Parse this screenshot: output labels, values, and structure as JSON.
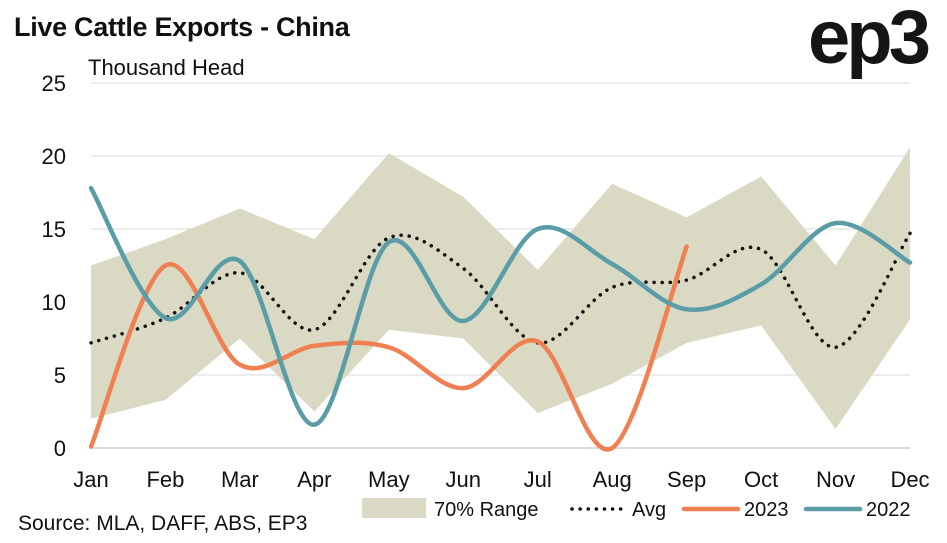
{
  "header": {
    "title": "Live Cattle Exports - China",
    "subtitle": "Thousand Head",
    "logo": "ep3"
  },
  "footer": {
    "source": "Source: MLA, DAFF, ABS, EP3"
  },
  "colors": {
    "range": "#d9d9c4",
    "avg": "#111111",
    "series_2023": "#f07f52",
    "series_2022": "#5a9da6",
    "grid": "#e6e6e6"
  },
  "chart_data": {
    "type": "line",
    "title": "Live Cattle Exports - China",
    "ylabel": "Thousand Head",
    "xlabel": "",
    "ylim": [
      0,
      25
    ],
    "yticks": [
      0,
      5,
      10,
      15,
      20,
      25
    ],
    "grid": true,
    "legend_position": "bottom",
    "categories": [
      "Jan",
      "Feb",
      "Mar",
      "Apr",
      "May",
      "Jun",
      "Jul",
      "Aug",
      "Sep",
      "Oct",
      "Nov",
      "Dec"
    ],
    "range": {
      "name": "70% Range",
      "low": [
        2.0,
        3.3,
        7.5,
        2.5,
        8.1,
        7.5,
        2.4,
        4.4,
        7.2,
        8.4,
        1.3,
        8.8
      ],
      "high": [
        12.5,
        14.3,
        16.4,
        14.3,
        20.2,
        17.2,
        12.2,
        18.1,
        15.8,
        18.6,
        12.5,
        20.6
      ]
    },
    "series": [
      {
        "name": "Avg",
        "style": "dotted",
        "values": [
          7.2,
          8.9,
          12.0,
          8.1,
          14.4,
          12.3,
          7.2,
          11.0,
          11.5,
          13.6,
          6.9,
          14.7
        ]
      },
      {
        "name": "2023",
        "style": "solid",
        "values": [
          0.1,
          12.5,
          5.7,
          7.0,
          6.9,
          4.1,
          7.3,
          0.0,
          13.8,
          null,
          null,
          null
        ]
      },
      {
        "name": "2022",
        "style": "solid",
        "values": [
          17.8,
          8.9,
          12.8,
          1.6,
          14.1,
          8.7,
          15.0,
          12.6,
          9.5,
          11.2,
          15.4,
          12.7
        ]
      }
    ]
  }
}
